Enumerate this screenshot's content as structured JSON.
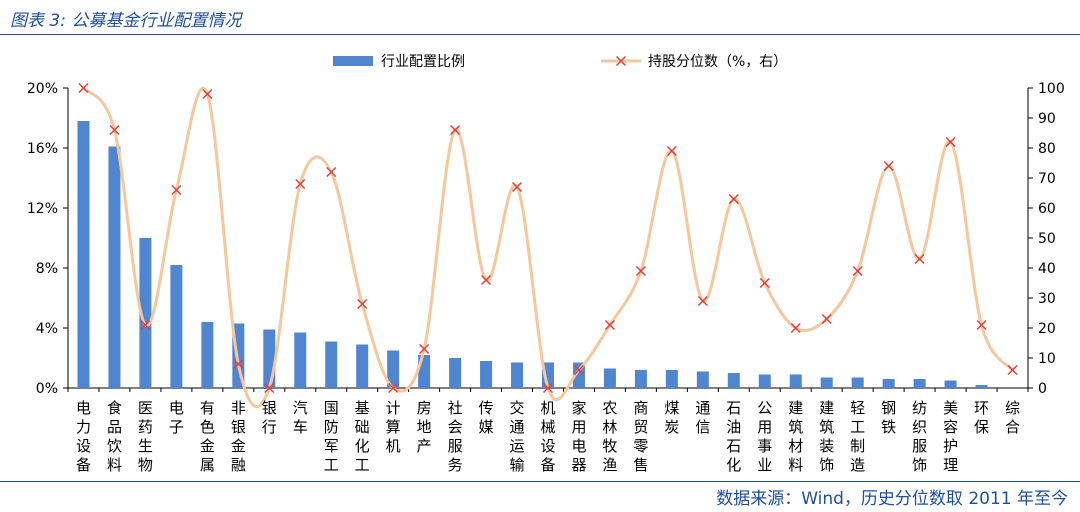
{
  "header": {
    "title": "图表 3: 公募基金行业配置情况"
  },
  "footer": {
    "source": "数据来源：Wind，历史分位数取 2011 年至今"
  },
  "chart_data": {
    "type": "bar+line",
    "categories": [
      "电力设备",
      "食品饮料",
      "医药生物",
      "电子",
      "有色金属",
      "非银金融",
      "银行",
      "汽车",
      "国防军工",
      "基础化工",
      "计算机",
      "房地产",
      "社会服务",
      "传媒",
      "交通运输",
      "机械设备",
      "家用电器",
      "农林牧渔",
      "商贸零售",
      "煤炭",
      "通信",
      "石油石化",
      "公用事业",
      "建筑材料",
      "建筑装饰",
      "轻工制造",
      "钢铁",
      "纺织服饰",
      "美容护理",
      "环保",
      "综合"
    ],
    "series": [
      {
        "name": "行业配置比例",
        "type": "bar",
        "axis": "left",
        "color": "#4f86cf",
        "values": [
          17.8,
          16.1,
          10.0,
          8.2,
          4.4,
          4.3,
          3.9,
          3.7,
          3.1,
          2.9,
          2.5,
          2.2,
          2.0,
          1.8,
          1.7,
          1.7,
          1.7,
          1.3,
          1.2,
          1.2,
          1.1,
          1.0,
          0.9,
          0.9,
          0.7,
          0.7,
          0.6,
          0.6,
          0.5,
          0.2,
          0.0
        ]
      },
      {
        "name": "持股分位数（%，右）",
        "type": "line",
        "axis": "right",
        "color": "#f6c79c",
        "marker_color": "#e0403a",
        "values": [
          100,
          86,
          21,
          66,
          98,
          8,
          0,
          68,
          72,
          28,
          0,
          13,
          86,
          36,
          67,
          0,
          6,
          21,
          39,
          79,
          29,
          63,
          35,
          20,
          23,
          39,
          74,
          43,
          82,
          21,
          6
        ]
      }
    ],
    "y_left": {
      "min": 0,
      "max": 20,
      "step": 4,
      "format": "percent"
    },
    "y_right": {
      "min": 0,
      "max": 100,
      "step": 10
    },
    "legend_position": "top-center",
    "grid": false
  }
}
